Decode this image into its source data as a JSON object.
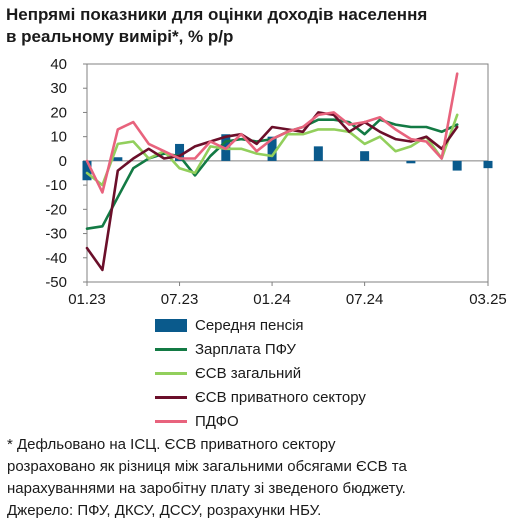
{
  "title_lines": [
    "Непрямі показники для оцінки доходів населення",
    "в реальному вимірі*, % р/р"
  ],
  "notes": [
    "* Дефльовано на ІСЦ. ЄСВ приватного сектору",
    "розраховано як різниця між загальними обсягами ЄСВ та",
    "нарахуваннями на заробітну плату зі зведеного бюджету.",
    "Джерело: ПФУ, ДКСУ, ДССУ, розрахунки НБУ."
  ],
  "colors": {
    "pension": "#0a5a8c",
    "salary_pfu": "#137a44",
    "esv_total": "#92cf5c",
    "esv_private": "#6b0f2a",
    "pdfo": "#e8637d",
    "axis": "#808080",
    "grid": "#d9d9d9"
  },
  "chart_data": {
    "type": "bar",
    "title": "Непрямі показники для оцінки доходів населення в реальному вимірі*, % р/р",
    "x_tick_labels": [
      "01.23",
      "07.23",
      "01.24",
      "07.24",
      "03.25"
    ],
    "x_tick_month_index": [
      0,
      6,
      12,
      18,
      26
    ],
    "months": [
      "01.23",
      "02.23",
      "03.23",
      "04.23",
      "05.23",
      "06.23",
      "07.23",
      "08.23",
      "09.23",
      "10.23",
      "11.23",
      "12.23",
      "01.24",
      "02.24",
      "03.24",
      "04.24",
      "05.24",
      "06.24",
      "07.24",
      "08.24",
      "09.24",
      "10.24",
      "11.24",
      "12.24",
      "01.25",
      "02.25",
      "03.25"
    ],
    "ylim": [
      -50,
      40
    ],
    "yticks": [
      -50,
      -40,
      -30,
      -20,
      -10,
      0,
      10,
      20,
      30,
      40
    ],
    "grid": false,
    "legend_position": "bottom",
    "series": [
      {
        "name": "Середня пенсія",
        "kind": "bar",
        "color_key": "pension",
        "values": [
          -8,
          null,
          1.5,
          null,
          null,
          null,
          7,
          null,
          null,
          11,
          null,
          null,
          10,
          null,
          null,
          6,
          null,
          null,
          4,
          null,
          null,
          -1,
          null,
          null,
          -4,
          null,
          -3
        ]
      },
      {
        "name": "Зарплата ПФУ",
        "kind": "line",
        "color_key": "salary_pfu",
        "values": [
          -28,
          -27,
          -15,
          -3,
          1,
          3,
          2,
          -6,
          2,
          8,
          9,
          8,
          9,
          12,
          14,
          17,
          17,
          16,
          11,
          17,
          15,
          14,
          14,
          12,
          15,
          null,
          null
        ]
      },
      {
        "name": "ЄСВ загальний",
        "kind": "line",
        "color_key": "esv_total",
        "values": [
          -5,
          -10,
          7,
          8,
          1,
          4,
          -3,
          -5,
          6,
          5,
          5,
          3,
          2,
          11,
          11,
          13,
          13,
          12,
          7,
          10,
          4,
          6,
          10,
          1,
          19,
          null,
          null
        ]
      },
      {
        "name": "ЄСВ приватного сектору",
        "kind": "line",
        "color_key": "esv_private",
        "values": [
          -36,
          -45,
          -4,
          1,
          5,
          1,
          2,
          6,
          8,
          10,
          11,
          7,
          14,
          13,
          12,
          20,
          19,
          12,
          16,
          12,
          9,
          8,
          10,
          5,
          14,
          null,
          null
        ]
      },
      {
        "name": "ПДФО",
        "kind": "line",
        "color_key": "pdfo",
        "values": [
          0,
          -13,
          13,
          16,
          7,
          4,
          1,
          1,
          8,
          5,
          11,
          4,
          9,
          12,
          14,
          19,
          20,
          15,
          16,
          18,
          13,
          9,
          8,
          1,
          36,
          null,
          null
        ]
      }
    ]
  }
}
